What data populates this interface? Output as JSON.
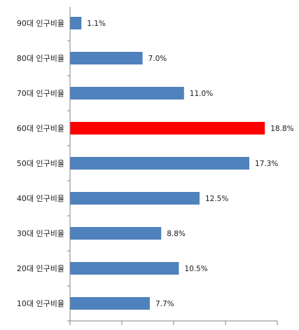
{
  "chart_data": {
    "type": "bar",
    "orientation": "horizontal",
    "categories": [
      "90대 인구비율",
      "80대 인구비율",
      "70대 인구비율",
      "60대 인구비율",
      "50대 인구비율",
      "40대 인구비율",
      "30대 인구비율",
      "20대 인구비율",
      "10대 인구비율"
    ],
    "values": [
      1.1,
      7.0,
      11.0,
      18.8,
      17.3,
      12.5,
      8.8,
      10.5,
      7.7
    ],
    "value_labels": [
      "1.1%",
      "7.0%",
      "11.0%",
      "18.8%",
      "17.3%",
      "12.5%",
      "8.8%",
      "10.5%",
      "7.7%"
    ],
    "xlim": [
      0,
      20
    ],
    "x_tick_values": [
      0,
      5,
      10,
      15,
      20
    ],
    "grid": false,
    "legend": "none",
    "bar_color": "#4F81BD",
    "highlight_color": "#FF0000",
    "highlight_index": 3
  }
}
